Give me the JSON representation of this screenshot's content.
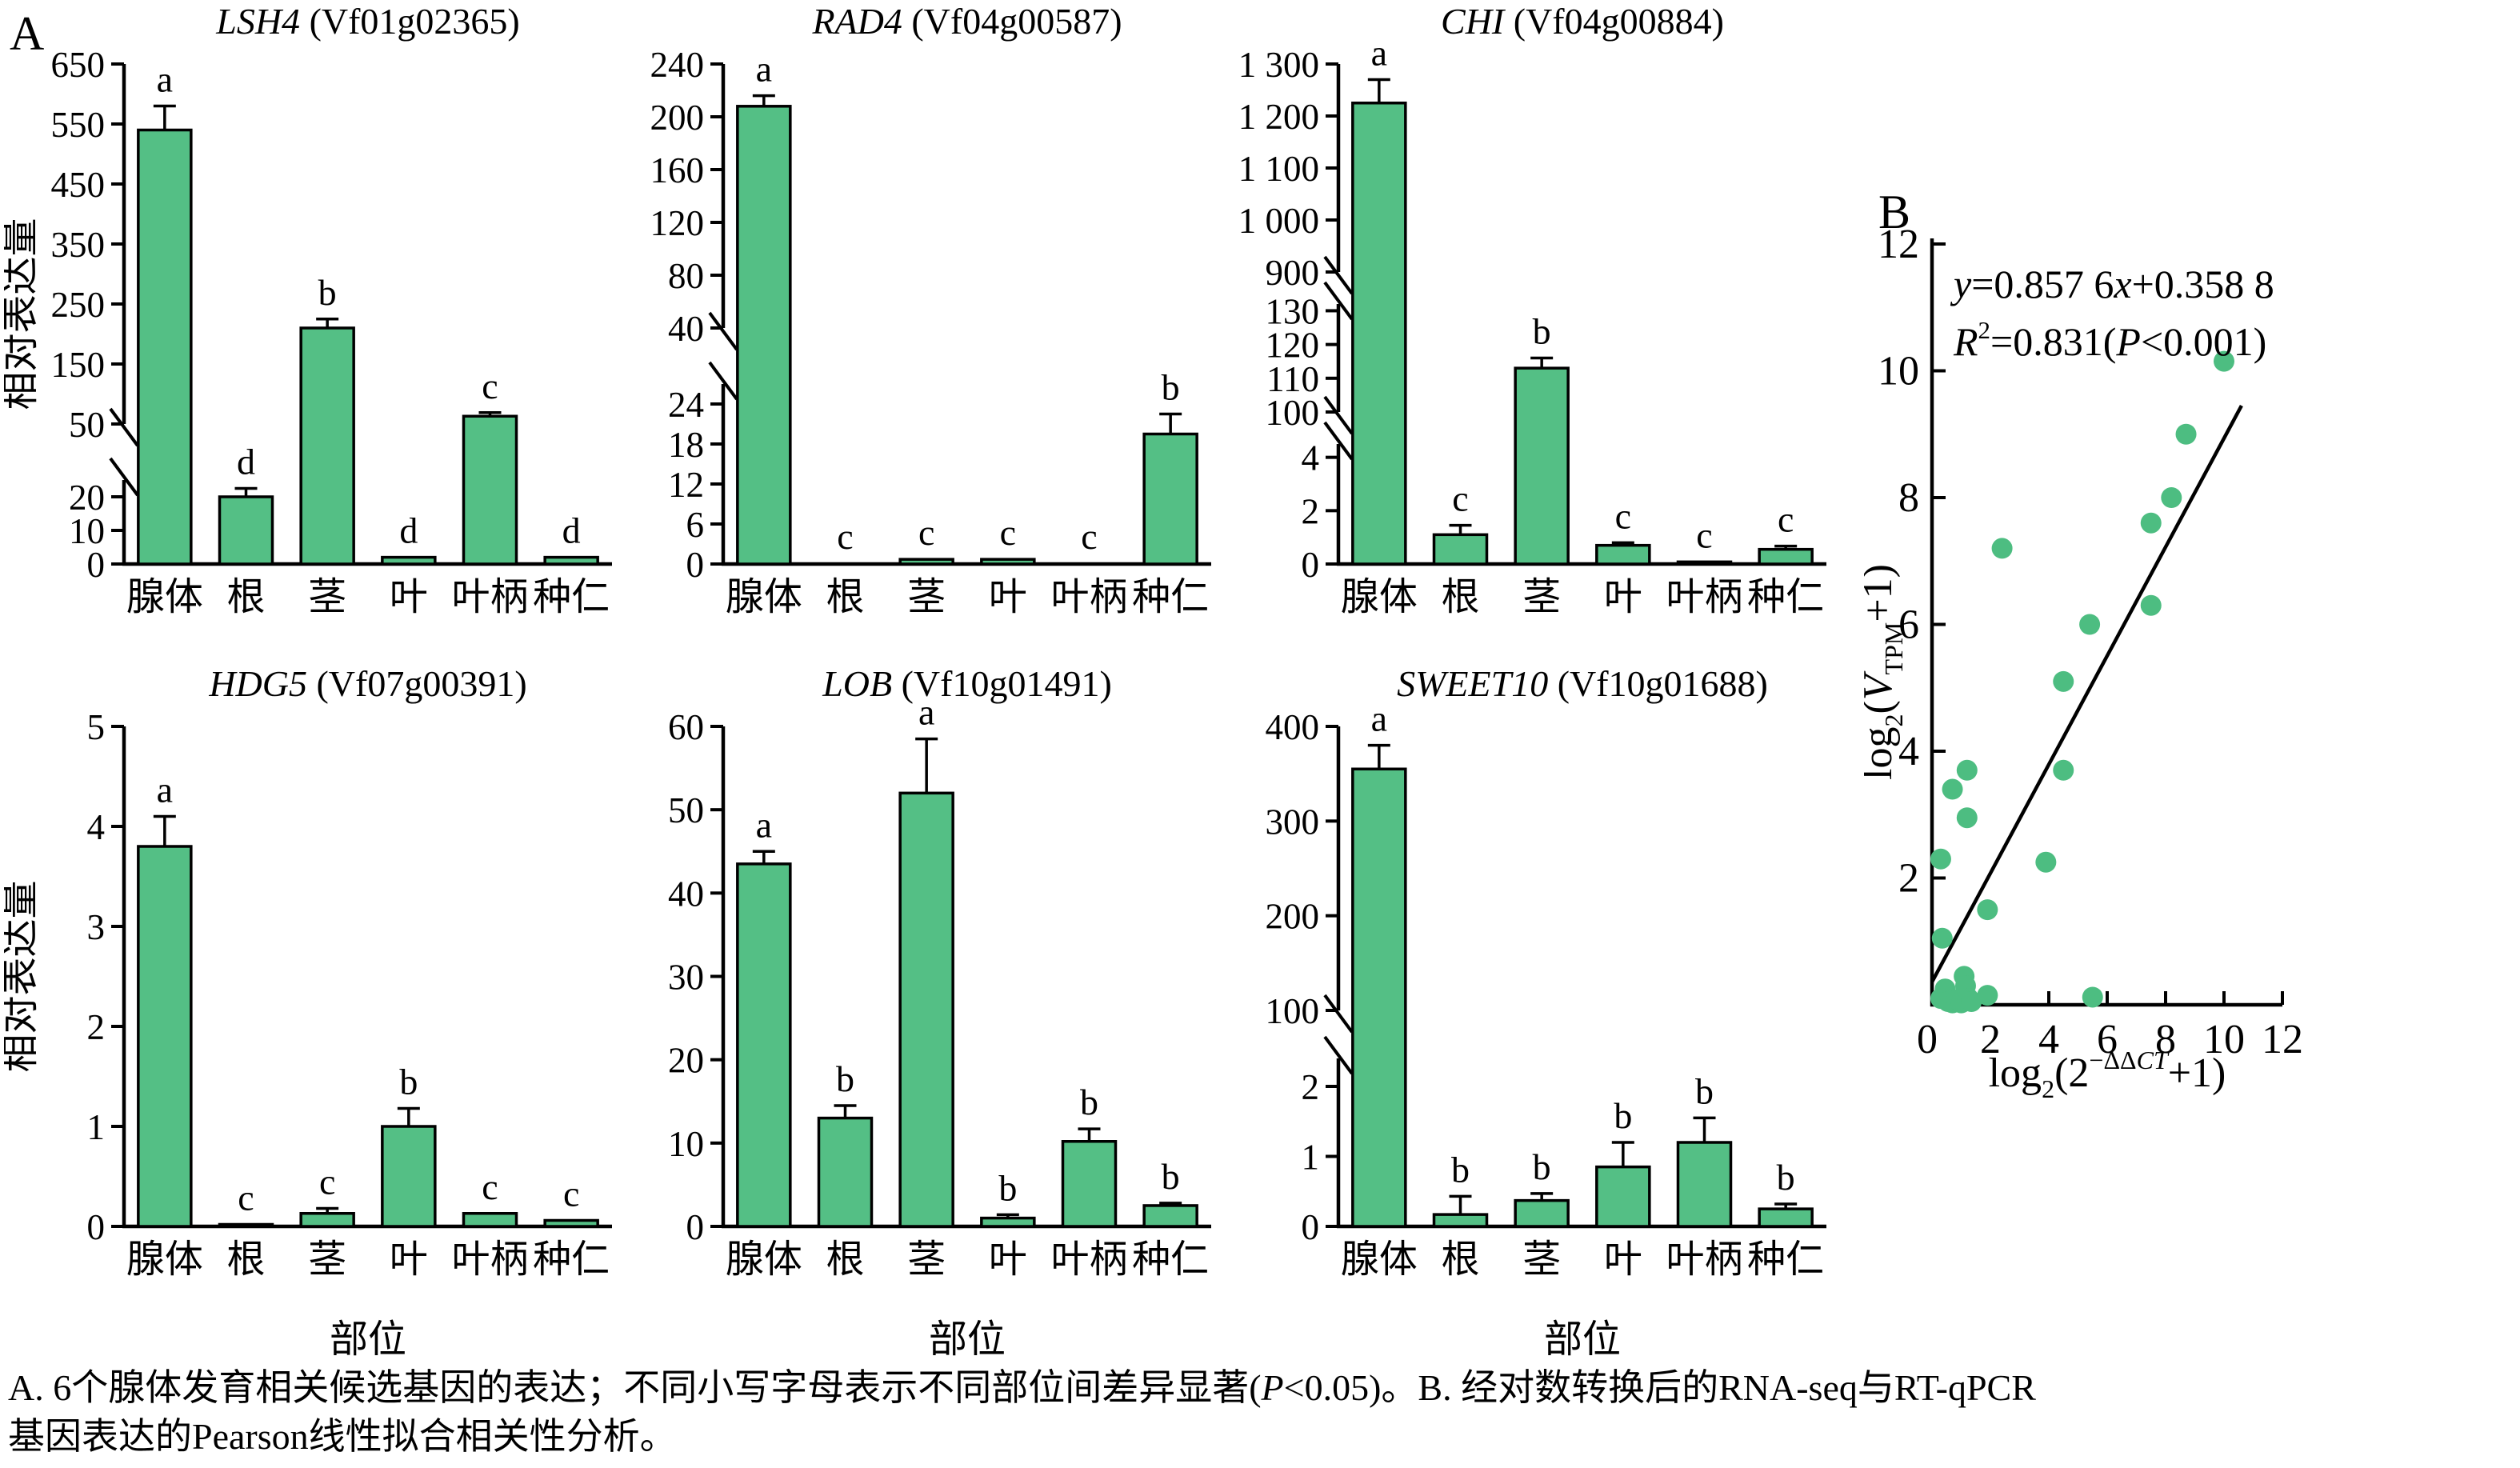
{
  "panel_a_label": "A",
  "panel_b_label": "B",
  "colors": {
    "bar_fill": "#54bf85",
    "point_fill": "#4dbd81",
    "stroke": "#000000"
  },
  "chart_data": {
    "bar_charts": [
      {
        "type": "bar",
        "gene": "LSH4",
        "accession": "(Vf01g02365)",
        "ylabel": "相对表达量",
        "show_ylabel": true,
        "show_xlabel": false,
        "categories": [
          "腺体",
          "根",
          "茎",
          "叶",
          "叶柄",
          "种仁"
        ],
        "values": [
          540,
          20,
          210,
          2,
          63,
          2
        ],
        "errors": [
          40,
          2.5,
          15,
          0,
          6,
          0
        ],
        "letters": [
          "a",
          "d",
          "b",
          "d",
          "c",
          "d"
        ],
        "segments": [
          {
            "min": 0,
            "max": 25,
            "px": 105,
            "gap_above": 70,
            "ticks": [
              [
                0,
                "0"
              ],
              [
                10,
                "10"
              ],
              [
                20,
                "20"
              ]
            ]
          },
          {
            "min": 50,
            "max": 650,
            "px": 450,
            "ticks": [
              [
                50,
                "50"
              ],
              [
                150,
                "150"
              ],
              [
                250,
                "250"
              ],
              [
                350,
                "350"
              ],
              [
                450,
                "450"
              ],
              [
                550,
                "550"
              ],
              [
                650,
                "650"
              ]
            ]
          }
        ]
      },
      {
        "type": "bar",
        "gene": "RAD4",
        "accession": "(Vf04g00587)",
        "show_ylabel": false,
        "show_xlabel": false,
        "categories": [
          "腺体",
          "根",
          "茎",
          "叶",
          "叶柄",
          "种仁"
        ],
        "values": [
          208,
          0.15,
          0.7,
          0.7,
          0.1,
          19.5
        ],
        "errors": [
          8,
          0,
          0.25,
          0.25,
          0,
          3
        ],
        "letters": [
          "a",
          "c",
          "c",
          "c",
          "c",
          "b"
        ],
        "segments": [
          {
            "min": 0,
            "max": 27,
            "px": 225,
            "gap_above": 70,
            "ticks": [
              [
                0,
                "0"
              ],
              [
                6,
                "6"
              ],
              [
                12,
                "12"
              ],
              [
                18,
                "18"
              ],
              [
                24,
                "24"
              ]
            ]
          },
          {
            "min": 40,
            "max": 240,
            "px": 330,
            "ticks": [
              [
                40,
                "40"
              ],
              [
                80,
                "80"
              ],
              [
                120,
                "120"
              ],
              [
                160,
                "160"
              ],
              [
                200,
                "200"
              ],
              [
                240,
                "240"
              ]
            ]
          }
        ]
      },
      {
        "type": "bar",
        "gene": "CHI",
        "accession": "(Vf04g00884)",
        "show_ylabel": false,
        "show_xlabel": false,
        "categories": [
          "腺体",
          "根",
          "茎",
          "叶",
          "叶柄",
          "种仁"
        ],
        "values": [
          1225,
          1.1,
          113,
          0.7,
          0.08,
          0.55
        ],
        "errors": [
          45,
          0.35,
          3,
          0.1,
          0,
          0.12
        ],
        "letters": [
          "a",
          "c",
          "b",
          "c",
          "c",
          "c"
        ],
        "segments": [
          {
            "min": 0,
            "max": 4.5,
            "px": 150,
            "gap_above": 40,
            "ticks": [
              [
                0,
                "0"
              ],
              [
                2,
                "2"
              ],
              [
                4,
                "4"
              ]
            ]
          },
          {
            "min": 100,
            "max": 132,
            "px": 135,
            "gap_above": 40,
            "ticks": [
              [
                100,
                "100"
              ],
              [
                110,
                "110"
              ],
              [
                120,
                "120"
              ],
              [
                130,
                "130"
              ]
            ]
          },
          {
            "min": 900,
            "max": 1300,
            "px": 260,
            "ticks": [
              [
                900,
                "900"
              ],
              [
                1000,
                "1 000"
              ],
              [
                1100,
                "1 100"
              ],
              [
                1200,
                "1 200"
              ],
              [
                1300,
                "1 300"
              ]
            ]
          }
        ]
      },
      {
        "type": "bar",
        "gene": "HDG5",
        "accession": "(Vf07g00391)",
        "ylabel": "相对表达量",
        "show_ylabel": true,
        "show_xlabel": true,
        "xlabel": "部位",
        "categories": [
          "腺体",
          "根",
          "茎",
          "叶",
          "叶柄",
          "种仁"
        ],
        "values": [
          3.8,
          0.02,
          0.13,
          1.0,
          0.13,
          0.06
        ],
        "errors": [
          0.3,
          0,
          0.05,
          0.18,
          0.02,
          0.02
        ],
        "letters": [
          "a",
          "c",
          "c",
          "b",
          "c",
          "c"
        ],
        "segments": [
          {
            "min": 0,
            "max": 5,
            "px": 625,
            "ticks": [
              [
                0,
                "0"
              ],
              [
                1,
                "1"
              ],
              [
                2,
                "2"
              ],
              [
                3,
                "3"
              ],
              [
                4,
                "4"
              ],
              [
                5,
                "5"
              ]
            ]
          }
        ]
      },
      {
        "type": "bar",
        "gene": "LOB",
        "accession": "(Vf10g01491)",
        "show_ylabel": false,
        "show_xlabel": true,
        "xlabel": "部位",
        "categories": [
          "腺体",
          "根",
          "茎",
          "叶",
          "叶柄",
          "种仁"
        ],
        "values": [
          43.5,
          13,
          52,
          1.0,
          10.2,
          2.5
        ],
        "errors": [
          1.5,
          1.5,
          6.5,
          0.4,
          1.5,
          0.3
        ],
        "letters": [
          "a",
          "b",
          "a",
          "b",
          "b",
          "b"
        ],
        "segments": [
          {
            "min": 0,
            "max": 60,
            "px": 625,
            "ticks": [
              [
                0,
                "0"
              ],
              [
                10,
                "10"
              ],
              [
                20,
                "20"
              ],
              [
                30,
                "30"
              ],
              [
                40,
                "40"
              ],
              [
                50,
                "50"
              ],
              [
                60,
                "60"
              ]
            ]
          }
        ]
      },
      {
        "type": "bar",
        "gene": "SWEET10",
        "accession": "(Vf10g01688)",
        "show_ylabel": false,
        "show_xlabel": true,
        "xlabel": "部位",
        "categories": [
          "腺体",
          "根",
          "茎",
          "叶",
          "叶柄",
          "种仁"
        ],
        "values": [
          355,
          0.17,
          0.37,
          0.85,
          1.2,
          0.25
        ],
        "errors": [
          25,
          0.26,
          0.1,
          0.35,
          0.35,
          0.07
        ],
        "letters": [
          "a",
          "b",
          "b",
          "b",
          "b",
          "b"
        ],
        "segments": [
          {
            "min": 0,
            "max": 2.4,
            "px": 210,
            "gap_above": 60,
            "ticks": [
              [
                0,
                "0"
              ],
              [
                1,
                "1"
              ],
              [
                2,
                "2"
              ]
            ]
          },
          {
            "min": 100,
            "max": 400,
            "px": 355,
            "ticks": [
              [
                100,
                "100"
              ],
              [
                200,
                "200"
              ],
              [
                300,
                "300"
              ],
              [
                400,
                "400"
              ]
            ]
          }
        ]
      },
      {
        "type": "scatter",
        "equation_line1_parts": [
          {
            "t": "y",
            "i": true
          },
          {
            "t": "=0.857 6"
          },
          {
            "t": "x",
            "i": true
          },
          {
            "t": "+0.358 8"
          }
        ],
        "equation_line2_parts": [
          {
            "t": "R",
            "i": true
          },
          {
            "t": "2",
            "sup": true
          },
          {
            "t": "=0.831("
          },
          {
            "t": "P",
            "i": true
          },
          {
            "t": "<0.001)"
          }
        ],
        "ylabel_parts": [
          {
            "t": "log"
          },
          {
            "t": "2",
            "sub": true
          },
          {
            "t": "("
          },
          {
            "t": "V",
            "i": true
          },
          {
            "t": "TPM",
            "sub": true
          },
          {
            "t": "+1)"
          }
        ],
        "xlabel_parts": [
          {
            "t": "log"
          },
          {
            "t": "2",
            "sub": true
          },
          {
            "t": "(2"
          },
          {
            "t": "−ΔΔ",
            "sup": true
          },
          {
            "t": "CT",
            "sup": true,
            "i": true
          },
          {
            "t": "+1)"
          }
        ],
        "xlim": [
          0,
          12
        ],
        "ylim": [
          0,
          12
        ],
        "xticks": [
          0,
          2,
          4,
          6,
          8,
          10,
          12
        ],
        "yticks": [
          2,
          4,
          6,
          8,
          10,
          12
        ],
        "regression_line": {
          "x1": 0,
          "y1": 0.36,
          "x2": 10.6,
          "y2": 9.45
        },
        "points": [
          [
            0.3,
            0.1
          ],
          [
            0.45,
            0.25
          ],
          [
            0.55,
            0.05
          ],
          [
            0.7,
            0.03
          ],
          [
            0.85,
            0.08
          ],
          [
            1.0,
            0.03
          ],
          [
            1.1,
            0.45
          ],
          [
            1.15,
            0.3
          ],
          [
            1.25,
            0.1
          ],
          [
            1.35,
            0.05
          ],
          [
            1.9,
            0.15
          ],
          [
            5.5,
            0.12
          ],
          [
            0.35,
            1.05
          ],
          [
            1.9,
            1.5
          ],
          [
            0.3,
            2.3
          ],
          [
            3.9,
            2.25
          ],
          [
            1.2,
            2.95
          ],
          [
            0.7,
            3.4
          ],
          [
            1.2,
            3.7
          ],
          [
            4.5,
            3.7
          ],
          [
            4.5,
            5.1
          ],
          [
            5.4,
            6.0
          ],
          [
            7.5,
            6.3
          ],
          [
            2.4,
            7.2
          ],
          [
            7.5,
            7.6
          ],
          [
            8.2,
            8.0
          ],
          [
            8.7,
            9.0
          ],
          [
            10.0,
            10.15
          ]
        ]
      }
    ]
  },
  "caption": {
    "line1_parts": [
      {
        "t": "A. 6个腺体发育相关候选基因的表达；不同小写字母表示不同部位间差异显著("
      },
      {
        "t": "P",
        "i": true
      },
      {
        "t": "<0.05)。B. 经对数转换后的RNA-seq与RT-qPCR"
      }
    ],
    "line2_parts": [
      {
        "t": "基因表达的Pearson线性拟合相关性分析。"
      }
    ]
  }
}
